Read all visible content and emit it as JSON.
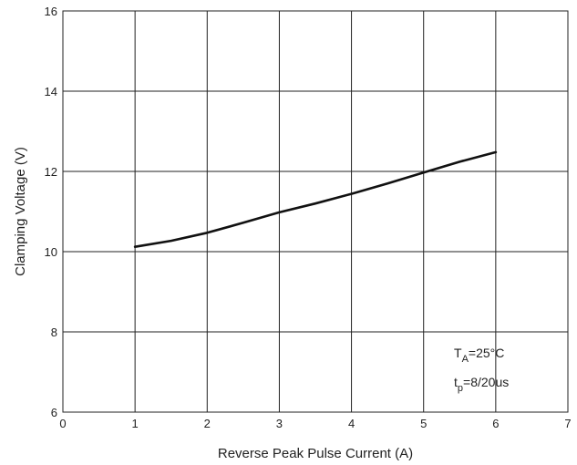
{
  "chart_data": {
    "type": "line",
    "title": "",
    "xlabel": "Reverse Peak Pulse Current (A)",
    "ylabel": "Clamping Voltage (V)",
    "xlim": [
      0,
      7
    ],
    "ylim": [
      6,
      16
    ],
    "xticks": [
      "0",
      "1",
      "2",
      "3",
      "4",
      "5",
      "6",
      "7"
    ],
    "yticks": [
      "6",
      "8",
      "10",
      "12",
      "14",
      "16"
    ],
    "grid": true,
    "series": [
      {
        "x": [
          1,
          1.5,
          2,
          2.5,
          3,
          3.5,
          4,
          4.5,
          5,
          5.5,
          6
        ],
        "y": [
          10.12,
          10.27,
          10.47,
          10.72,
          10.98,
          11.2,
          11.44,
          11.7,
          11.97,
          12.24,
          12.48
        ],
        "color": "#111111"
      }
    ],
    "annotations": {
      "ta_main": "T",
      "ta_sub": "A",
      "ta_rest": "=25°C",
      "tp_main": "t",
      "tp_sub": "p",
      "tp_rest": "=8/20us"
    }
  }
}
